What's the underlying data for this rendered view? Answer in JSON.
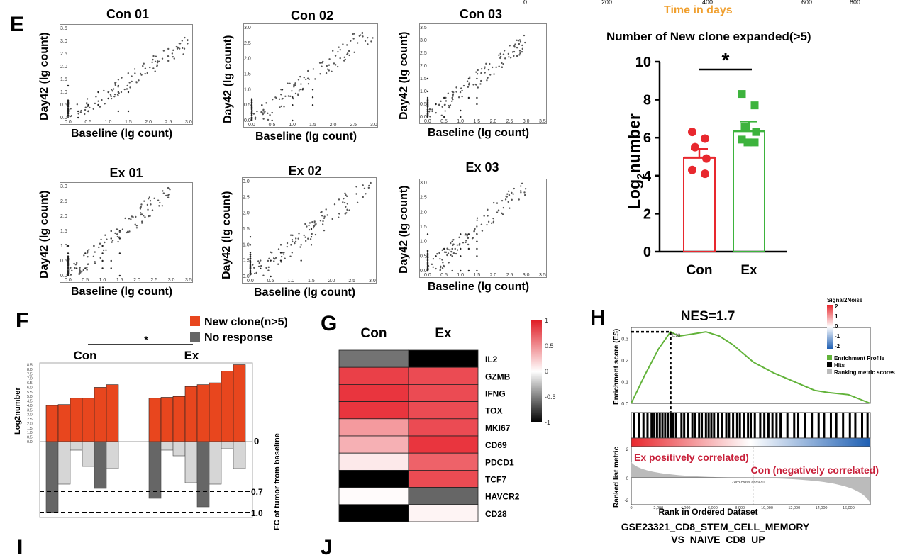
{
  "panel_letters": {
    "E": "E",
    "F": "F",
    "G": "G",
    "H": "H",
    "I": "I",
    "J": "J"
  },
  "top_partial": {
    "ticks": [
      "0",
      "200",
      "400",
      "600",
      "800"
    ],
    "xlabel": "Time in days",
    "xlabel_color": "#f0a030"
  },
  "scatter_panels": [
    {
      "title": "Con 01",
      "xlabel": "Baseline (lg count)",
      "ylabel": "Day42 (lg count)",
      "xticks": [
        "0.0",
        "0.5",
        "1.0",
        "1.5",
        "2.0",
        "2.5",
        "3.0"
      ],
      "yticks": [
        "0.0",
        "0.5",
        "1.0",
        "1.5",
        "2.0",
        "2.5",
        "3.0",
        "3.5"
      ]
    },
    {
      "title": "Con 02",
      "xlabel": "Baseline (lg count)",
      "ylabel": "Day42 (lg count)",
      "xticks": [
        "0.0",
        "0.5",
        "1.0",
        "1.5",
        "2.0",
        "2.5",
        "3.0"
      ],
      "yticks": [
        "0.0",
        "0.5",
        "1.0",
        "1.5",
        "2.0",
        "2.5",
        "3.0"
      ]
    },
    {
      "title": "Con 03",
      "xlabel": "Baseline (lg count)",
      "ylabel": "Day42 (lg count)",
      "xticks": [
        "0.0",
        "0.5",
        "1.0",
        "1.5",
        "2.0",
        "2.5",
        "3.0",
        "3.5"
      ],
      "yticks": [
        "0.0",
        "0.5",
        "1.0",
        "1.5",
        "2.0",
        "2.5",
        "3.0",
        "3.5"
      ]
    },
    {
      "title": "Ex 01",
      "xlabel": "Baseline (lg count)",
      "ylabel": "Day42 (lg count)",
      "xticks": [
        "0.0",
        "0.5",
        "1.0",
        "1.5",
        "2.0",
        "2.5",
        "3.0",
        "3.5"
      ],
      "yticks": [
        "0.0",
        "0.5",
        "1.0",
        "1.5",
        "2.0",
        "2.5",
        "3.0"
      ]
    },
    {
      "title": "Ex 02",
      "xlabel": "Baseline (lg count)",
      "ylabel": "Day42 (lg count)",
      "xticks": [
        "0.0",
        "0.5",
        "1.0",
        "1.5",
        "2.0",
        "2.5",
        "3.0"
      ],
      "yticks": [
        "0.0",
        "0.5",
        "1.0",
        "1.5",
        "2.0",
        "2.5",
        "3.0"
      ]
    },
    {
      "title": "Ex 03",
      "xlabel": "Baseline (lg count)",
      "ylabel": "Day42 (lg count)",
      "xticks": [
        "0.0",
        "0.5",
        "1.0",
        "1.5",
        "2.0",
        "2.5",
        "3.0",
        "3.5"
      ],
      "yticks": [
        "0.0",
        "0.5",
        "1.0",
        "1.5",
        "2.0",
        "2.5",
        "3.0"
      ]
    }
  ],
  "chart_data": [
    {
      "id": "E-bar",
      "type": "bar",
      "title": "Number of New clone expanded(>5)",
      "categories": [
        "Con",
        "Ex"
      ],
      "values": [
        4.95,
        6.35
      ],
      "errors": [
        0.45,
        0.5
      ],
      "points": [
        [
          6.3,
          5.95,
          5.5,
          4.9,
          4.3,
          4.1
        ],
        [
          8.3,
          7.7,
          6.55,
          6.3,
          5.9,
          5.75,
          5.75
        ]
      ],
      "colors": [
        "#e8282e",
        "#3db33d"
      ],
      "ylabel": "Log2number",
      "ylim": [
        0,
        10
      ],
      "yticks": [
        "0",
        "2",
        "4",
        "6",
        "8",
        "10"
      ],
      "significance": "*"
    },
    {
      "id": "F-waterfall",
      "type": "bar",
      "groups": [
        "Con",
        "Ex"
      ],
      "legend": [
        {
          "label": "New clone(n>5)",
          "color": "#e8461e"
        },
        {
          "label": "No response",
          "color": "#666666"
        }
      ],
      "significance": "*",
      "ylabel": "Log2number",
      "right_label": "FC of tumor from baseline",
      "ref_lines": [
        "0",
        "0.7",
        "1.0"
      ],
      "yticks": [
        "0.0",
        "0.5",
        "1.0",
        "1.5",
        "2.0",
        "2.5",
        "3.0",
        "3.5",
        "4.0",
        "4.5",
        "5.0",
        "5.5",
        "6.0",
        "6.5",
        "7.0",
        "7.5",
        "8.0",
        "8.5"
      ],
      "con": {
        "up": [
          4.0,
          4.1,
          4.8,
          4.8,
          6.0,
          6.3
        ],
        "down": [
          1.0,
          0.6,
          0.12,
          0.35,
          0.66,
          0.38
        ],
        "dark": [
          true,
          false,
          false,
          false,
          true,
          false
        ]
      },
      "ex": {
        "up": [
          4.8,
          4.9,
          5.0,
          6.1,
          6.3,
          6.5,
          7.8,
          8.5
        ],
        "down": [
          0.8,
          0.12,
          0.2,
          0.58,
          0.92,
          0.6,
          0.1,
          0.38
        ],
        "dark": [
          true,
          false,
          false,
          false,
          true,
          false,
          false,
          false
        ]
      }
    },
    {
      "id": "G-heatmap",
      "type": "heatmap",
      "columns": [
        "Con",
        "Ex"
      ],
      "rows": [
        "IL2",
        "GZMB",
        "IFNG",
        "TOX",
        "MKI67",
        "CD69",
        "PDCD1",
        "TCF7",
        "HAVCR2",
        "CD28"
      ],
      "values": [
        [
          -0.55,
          -1.0
        ],
        [
          0.85,
          0.8
        ],
        [
          0.9,
          0.8
        ],
        [
          0.9,
          0.8
        ],
        [
          0.45,
          0.8
        ],
        [
          0.35,
          0.9
        ],
        [
          0.1,
          0.7
        ],
        [
          -1.0,
          0.8
        ],
        [
          0.02,
          -0.6
        ],
        [
          -1.0,
          0.05
        ]
      ],
      "scale_ticks": [
        "1",
        "0.5",
        "0",
        "-0.5",
        "-1"
      ],
      "scale_range": [
        -1,
        1
      ]
    },
    {
      "id": "H-gsea",
      "type": "line",
      "title": "NES=1.7",
      "ylabel": "Enrichment score (ES)",
      "yticks": [
        "0.3",
        "0.2",
        "0.1",
        "0.0"
      ],
      "peak_label": "0.33",
      "es_curve": [
        [
          0,
          0.0
        ],
        [
          1000,
          0.13
        ],
        [
          2000,
          0.25
        ],
        [
          2900,
          0.33
        ],
        [
          3500,
          0.31
        ],
        [
          4500,
          0.32
        ],
        [
          5500,
          0.33
        ],
        [
          6500,
          0.31
        ],
        [
          7500,
          0.27
        ],
        [
          9000,
          0.19
        ],
        [
          10500,
          0.14
        ],
        [
          12000,
          0.1
        ],
        [
          13500,
          0.06
        ],
        [
          14500,
          0.05
        ],
        [
          16000,
          0.04
        ],
        [
          17600,
          0.0
        ]
      ],
      "hits": [
        200,
        600,
        900,
        1200,
        1500,
        1700,
        1900,
        2100,
        2300,
        2500,
        2700,
        2900,
        3100,
        3300,
        3700,
        3900,
        4200,
        4500,
        4700,
        5000,
        5200,
        5500,
        5700,
        5900,
        6100,
        6400,
        6700,
        7000,
        7200,
        7500,
        7800,
        8000,
        8300,
        8600,
        8800,
        9100,
        9500,
        9800,
        10100,
        10400,
        10700,
        11000,
        11500,
        12000,
        12300,
        12800,
        13300,
        13800,
        14200,
        14700,
        15100,
        15600,
        16100,
        16500,
        17000,
        17400
      ],
      "legend_title": "Signal2Noise",
      "legend_scale": [
        "2",
        "1",
        "0",
        "-1",
        "-2"
      ],
      "legend_items": [
        {
          "label": "Enrichment Profile",
          "color": "#62b33a"
        },
        {
          "label": "Hits",
          "color": "#000000"
        },
        {
          "label": "Ranking metric scores",
          "color": "#bbbbbb"
        }
      ],
      "rank_ylabel": "Ranked list metric",
      "rank_yticks": [
        "2",
        "0",
        "-2"
      ],
      "pos_label": "Ex positively correlated)",
      "neg_label": "Con (negatively correlated)",
      "zero_cross": "Zero cross at 8970",
      "xlabel": "Rank in Ordered Dataset",
      "xticks": [
        "0",
        "2,000",
        "4,000",
        "6,000",
        "8,000",
        "10,000",
        "12,000",
        "14,000",
        "16,000"
      ],
      "gene_set_line1": "GSE23321_CD8_STEM_CELL_MEMORY",
      "gene_set_line2": "_VS_NAIVE_CD8_UP"
    }
  ]
}
